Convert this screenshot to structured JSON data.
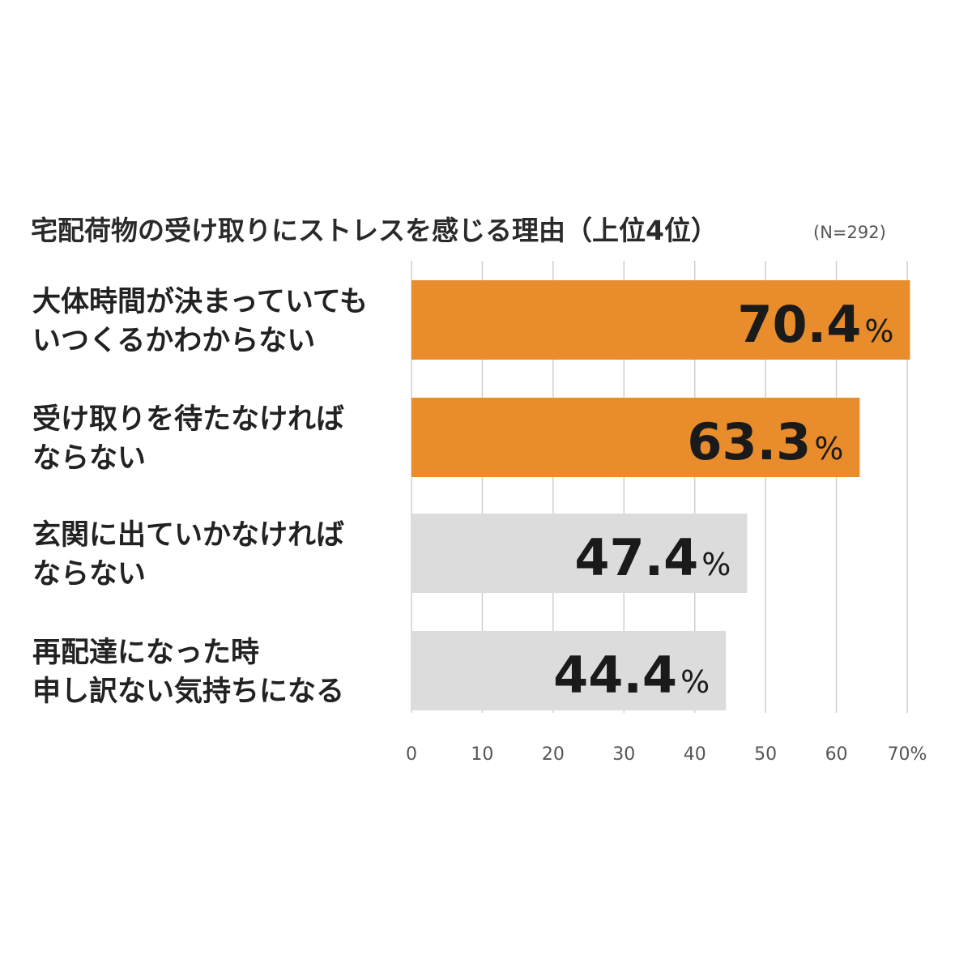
{
  "chart_data": {
    "type": "bar",
    "orientation": "horizontal",
    "title": "宅配荷物の受け取りにストレスを感じる理由（上位4位）",
    "sample_note": "(N=292)",
    "categories": [
      [
        "大体時間が決まっていても",
        "いつくるかわからない"
      ],
      [
        "受け取りを待たなければ",
        "ならない"
      ],
      [
        "玄関に出ていかなければ",
        "ならない"
      ],
      [
        "再配達になった時",
        "申し訳ない気持ちになる"
      ]
    ],
    "values": [
      70.4,
      63.3,
      47.4,
      44.4
    ],
    "value_labels": [
      "70.4",
      "63.3",
      "47.4",
      "44.4"
    ],
    "value_unit": "%",
    "bar_colors": [
      "#e88c2c",
      "#e88c2c",
      "#dcdcdc",
      "#dcdcdc"
    ],
    "xlim": [
      0,
      70
    ],
    "xticks": [
      0,
      10,
      20,
      30,
      40,
      50,
      60,
      70
    ],
    "xtick_labels": [
      "0",
      "10",
      "20",
      "30",
      "40",
      "50",
      "60",
      "70%"
    ],
    "grid": true,
    "legend": "none"
  }
}
